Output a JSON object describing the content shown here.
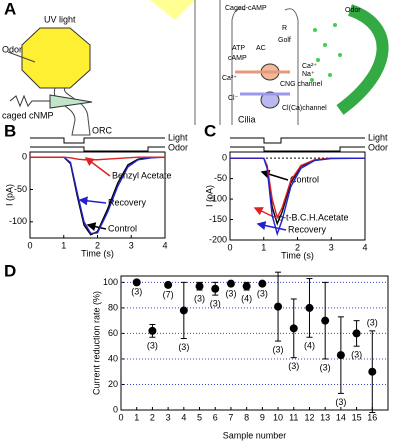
{
  "panel_labels": [
    "A",
    "B",
    "C",
    "D"
  ],
  "diagram": {
    "uv_light": "UV light",
    "odor_left": "Odor",
    "caged_cnmp": "caged cNMP",
    "orc": "ORC",
    "caged_camp": "Caged-cAMP",
    "odor_right": "Odor",
    "receptor": "R",
    "g_protein": "Golf",
    "atp": "ATP",
    "ac": "AC",
    "camp": "cAMP",
    "ca_in": "Ca²⁺",
    "ca_out": "Ca²⁺",
    "na_out": "Na⁺",
    "cng": "CNG channel",
    "cl": "Cl⁻",
    "clca": "Cl(Ca)channel",
    "cilia": "Cilia"
  },
  "chart_data": [
    {
      "type": "line",
      "stimulus_labels": [
        "Light",
        "Odor"
      ],
      "xlabel": "Time (s)",
      "ylabel": "I (pA)",
      "x": [
        0,
        1,
        1.2,
        1.4,
        1.6,
        1.8,
        2,
        2.3,
        2.6,
        2.9,
        3.2,
        3.6,
        4
      ],
      "series": [
        {
          "name": "Control",
          "color": "#000000",
          "values": [
            0,
            0,
            -10,
            -60,
            -105,
            -120,
            -115,
            -80,
            -40,
            -12,
            -3,
            0,
            0
          ]
        },
        {
          "name": "Recovery",
          "color": "#2222cc",
          "values": [
            0,
            0,
            -8,
            -55,
            -100,
            -118,
            -117,
            -85,
            -45,
            -15,
            -4,
            -1,
            0
          ]
        },
        {
          "name": "Benzyl Acetate",
          "color": "#dd2222",
          "values": [
            0,
            0,
            -1,
            -3,
            -4,
            -4,
            -4,
            -3,
            -2,
            -1,
            0,
            0,
            0
          ]
        }
      ],
      "xlim": [
        0,
        4
      ],
      "xticks": [
        0,
        1,
        2,
        3,
        4
      ],
      "ylim": [
        -125,
        8
      ],
      "yticks": [
        0,
        -50,
        -100
      ]
    },
    {
      "type": "line",
      "stimulus_labels": [
        "Light",
        "Odor"
      ],
      "xlabel": "Time (s)",
      "ylabel": "I (pA)",
      "x": [
        0,
        1,
        1.1,
        1.25,
        1.4,
        1.55,
        1.8,
        2.1,
        2.5,
        3,
        4
      ],
      "series": [
        {
          "name": "Control",
          "color": "#000000",
          "values": [
            0,
            0,
            -20,
            -120,
            -160,
            -130,
            -60,
            -20,
            -5,
            0,
            0
          ]
        },
        {
          "name": "o-t-B.C.H.Acetate",
          "color": "#dd2222",
          "values": [
            0,
            0,
            -18,
            -100,
            -145,
            -120,
            -55,
            -18,
            -4,
            0,
            0
          ]
        },
        {
          "name": "Recovery",
          "color": "#2222cc",
          "values": [
            0,
            0,
            -25,
            -140,
            -185,
            -150,
            -70,
            -25,
            -6,
            -1,
            0
          ]
        }
      ],
      "xlim": [
        0,
        4
      ],
      "xticks": [
        0,
        1,
        2,
        3,
        4
      ],
      "ylim": [
        -200,
        15
      ],
      "yticks": [
        0,
        -50,
        -100,
        -150,
        -200
      ]
    },
    {
      "type": "scatter",
      "xlabel": "Sample number",
      "ylabel": "Current reduction rate (%)",
      "color": "#000000",
      "grid": true,
      "x": [
        1,
        2,
        3,
        4,
        5,
        6,
        7,
        8,
        9,
        10,
        11,
        12,
        13,
        14,
        15,
        16
      ],
      "values": [
        100,
        62,
        98,
        78,
        97,
        95,
        99,
        97,
        99,
        81,
        64,
        80,
        70,
        43,
        60,
        30
      ],
      "errors": [
        0.5,
        5,
        1,
        22,
        3,
        5,
        1,
        3,
        1,
        27,
        23,
        23,
        30,
        30,
        10,
        32
      ],
      "n_labels": [
        "(3)",
        "(3)",
        "(7)",
        "(3)",
        "(3)",
        "(3)",
        "(3)",
        "(4)",
        "(3)",
        "(3)",
        "(3)",
        "(4)",
        "(3)",
        "(3)",
        "(3)",
        "(3)"
      ],
      "xlim": [
        0,
        17
      ],
      "xticks": [
        0,
        1,
        2,
        3,
        4,
        5,
        6,
        7,
        8,
        9,
        10,
        11,
        12,
        13,
        14,
        15,
        16
      ],
      "ylim": [
        0,
        105
      ],
      "yticks": [
        0,
        20,
        40,
        60,
        80,
        100
      ]
    }
  ]
}
